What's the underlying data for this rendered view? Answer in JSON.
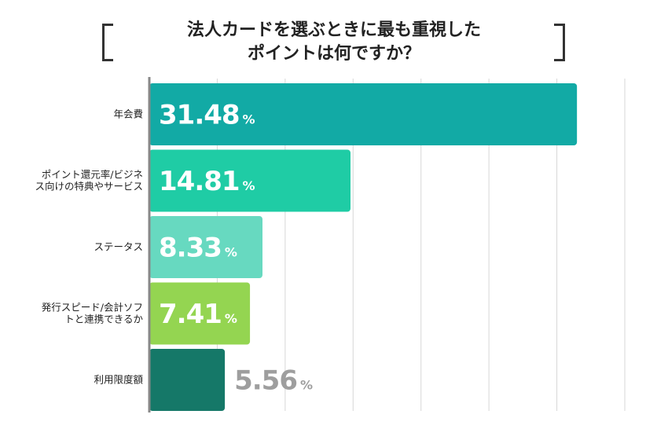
{
  "chart_data": {
    "type": "bar",
    "orientation": "horizontal",
    "title": "法人カードを選ぶときに最も重視した\nポイントは何ですか？",
    "categories": [
      [
        "年会費"
      ],
      [
        "ポイント還元率/ビジネ",
        "ス向けの特典やサービス"
      ],
      [
        "ステータス"
      ],
      [
        "発行スピード/会計ソフ",
        "トと連携できるか"
      ],
      [
        "利用限度額"
      ]
    ],
    "values": [
      31.48,
      14.81,
      8.33,
      7.41,
      5.56
    ],
    "unit": "%",
    "colors": [
      "#12aaa5",
      "#1fcca5",
      "#67d9c0",
      "#94d551",
      "#157868"
    ],
    "label_colors": [
      "#ffffff",
      "#ffffff",
      "#ffffff",
      "#ffffff",
      "#9e9e9e"
    ],
    "xlim": [
      0,
      35
    ],
    "grid": true
  }
}
